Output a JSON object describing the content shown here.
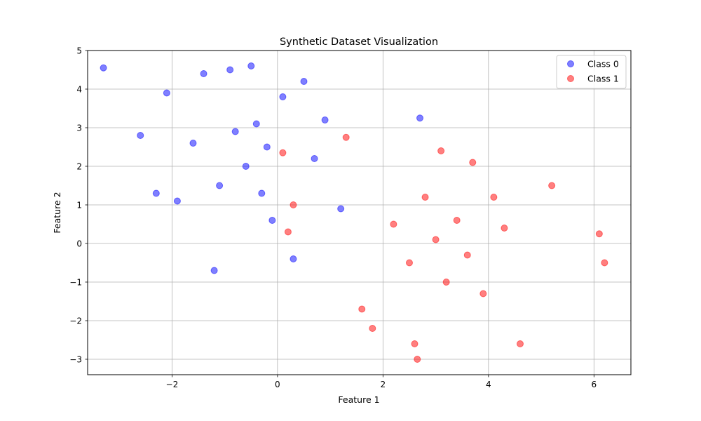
{
  "chart_data": {
    "type": "scatter",
    "title": "Synthetic Dataset Visualization",
    "xlabel": "Feature 1",
    "ylabel": "Feature 2",
    "xlim": [
      -3.6,
      6.7
    ],
    "ylim": [
      -3.4,
      5.0
    ],
    "xticks": [
      -2,
      0,
      2,
      4,
      6
    ],
    "yticks": [
      -3,
      -2,
      -1,
      0,
      1,
      2,
      3,
      4,
      5
    ],
    "xtick_labels": [
      "−2",
      "0",
      "2",
      "4",
      "6"
    ],
    "ytick_labels": [
      "−3",
      "−2",
      "−1",
      "0",
      "1",
      "2",
      "3",
      "4",
      "5"
    ],
    "grid": true,
    "legend_position": "top-right",
    "series": [
      {
        "name": "Class 0",
        "color": "#0000ff",
        "points": [
          [
            -3.3,
            4.55
          ],
          [
            -2.6,
            2.8
          ],
          [
            -2.3,
            1.3
          ],
          [
            -2.1,
            3.9
          ],
          [
            -1.9,
            1.1
          ],
          [
            -1.6,
            2.6
          ],
          [
            -1.4,
            4.4
          ],
          [
            -1.2,
            -0.7
          ],
          [
            -1.1,
            1.5
          ],
          [
            -0.9,
            4.5
          ],
          [
            -0.8,
            2.9
          ],
          [
            -0.6,
            2.0
          ],
          [
            -0.5,
            4.6
          ],
          [
            -0.4,
            3.1
          ],
          [
            -0.3,
            1.3
          ],
          [
            -0.2,
            2.5
          ],
          [
            -0.1,
            0.6
          ],
          [
            0.1,
            3.8
          ],
          [
            0.3,
            -0.4
          ],
          [
            0.5,
            4.2
          ],
          [
            0.7,
            2.2
          ],
          [
            0.9,
            3.2
          ],
          [
            1.2,
            0.9
          ],
          [
            2.7,
            3.25
          ]
        ]
      },
      {
        "name": "Class 1",
        "color": "#ff0000",
        "points": [
          [
            0.1,
            2.35
          ],
          [
            0.2,
            0.3
          ],
          [
            0.3,
            1.0
          ],
          [
            1.3,
            2.75
          ],
          [
            1.6,
            -1.7
          ],
          [
            1.8,
            -2.2
          ],
          [
            2.2,
            0.5
          ],
          [
            2.5,
            -0.5
          ],
          [
            2.6,
            -2.6
          ],
          [
            2.65,
            -3.0
          ],
          [
            2.8,
            1.2
          ],
          [
            3.0,
            0.1
          ],
          [
            3.1,
            2.4
          ],
          [
            3.2,
            -1.0
          ],
          [
            3.4,
            0.6
          ],
          [
            3.6,
            -0.3
          ],
          [
            3.7,
            2.1
          ],
          [
            3.9,
            -1.3
          ],
          [
            4.1,
            1.2
          ],
          [
            4.3,
            0.4
          ],
          [
            4.6,
            -2.6
          ],
          [
            5.2,
            1.5
          ],
          [
            6.1,
            0.25
          ],
          [
            6.2,
            -0.5
          ]
        ]
      }
    ]
  }
}
